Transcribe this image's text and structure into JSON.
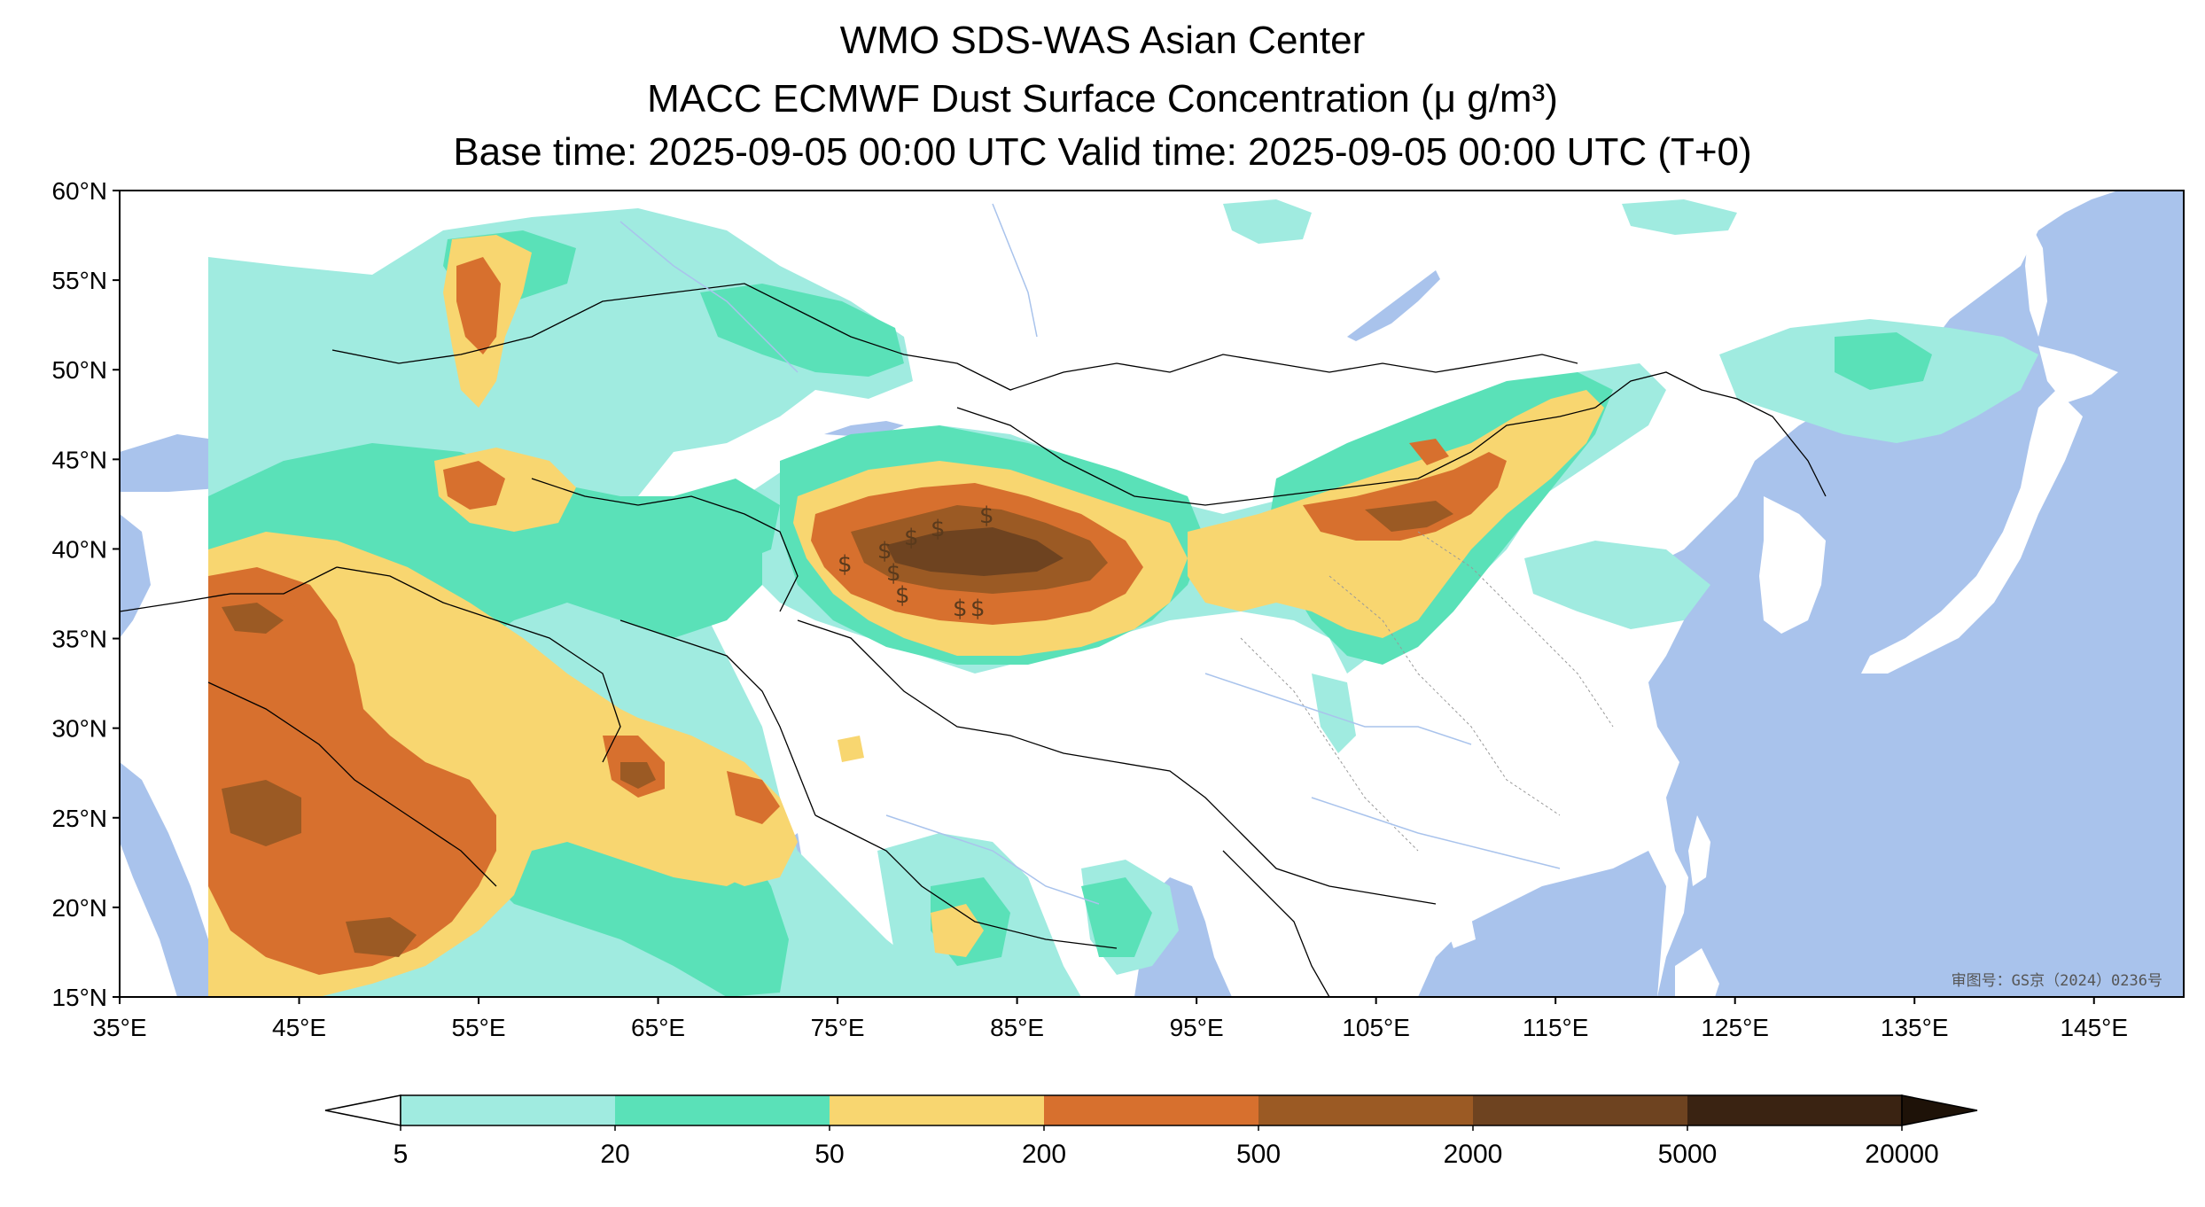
{
  "title": {
    "line1": "WMO SDS-WAS Asian Center",
    "line2": "MACC ECMWF Dust Surface Concentration (μ g/m³)",
    "line3": "Base time: 2025-09-05 00:00 UTC Valid time: 2025-09-05 00:00 UTC (T+0)"
  },
  "map": {
    "lon_range": [
      35,
      150
    ],
    "lat_range": [
      15,
      60
    ],
    "lon_ticks": [
      "35°E",
      "45°E",
      "55°E",
      "65°E",
      "75°E",
      "85°E",
      "95°E",
      "105°E",
      "115°E",
      "125°E",
      "135°E",
      "145°E"
    ],
    "lat_ticks": [
      "60°N",
      "55°N",
      "50°N",
      "45°N",
      "40°N",
      "35°N",
      "30°N",
      "25°N",
      "20°N",
      "15°N"
    ],
    "ocean_color": "#a9c3ec",
    "land_color": "#ffffff",
    "watermark": "审图号：GS京（2024）0236号"
  },
  "colorbar": {
    "levels": [
      "5",
      "20",
      "50",
      "200",
      "500",
      "2000",
      "5000",
      "20000"
    ],
    "colors": [
      "#a0ebe0",
      "#5ae1b8",
      "#f8d670",
      "#d7702e",
      "#9b5a24",
      "#6e4320",
      "#3a2312"
    ],
    "under_color": "#ffffff",
    "over_color": "#1e1208"
  },
  "dust_regions_description_colors": {
    "very_low": "#a0ebe0",
    "low": "#5ae1b8",
    "moderate": "#f8d670",
    "high": "#d7702e",
    "very_high": "#9b5a24",
    "extreme": "#6e4320"
  }
}
